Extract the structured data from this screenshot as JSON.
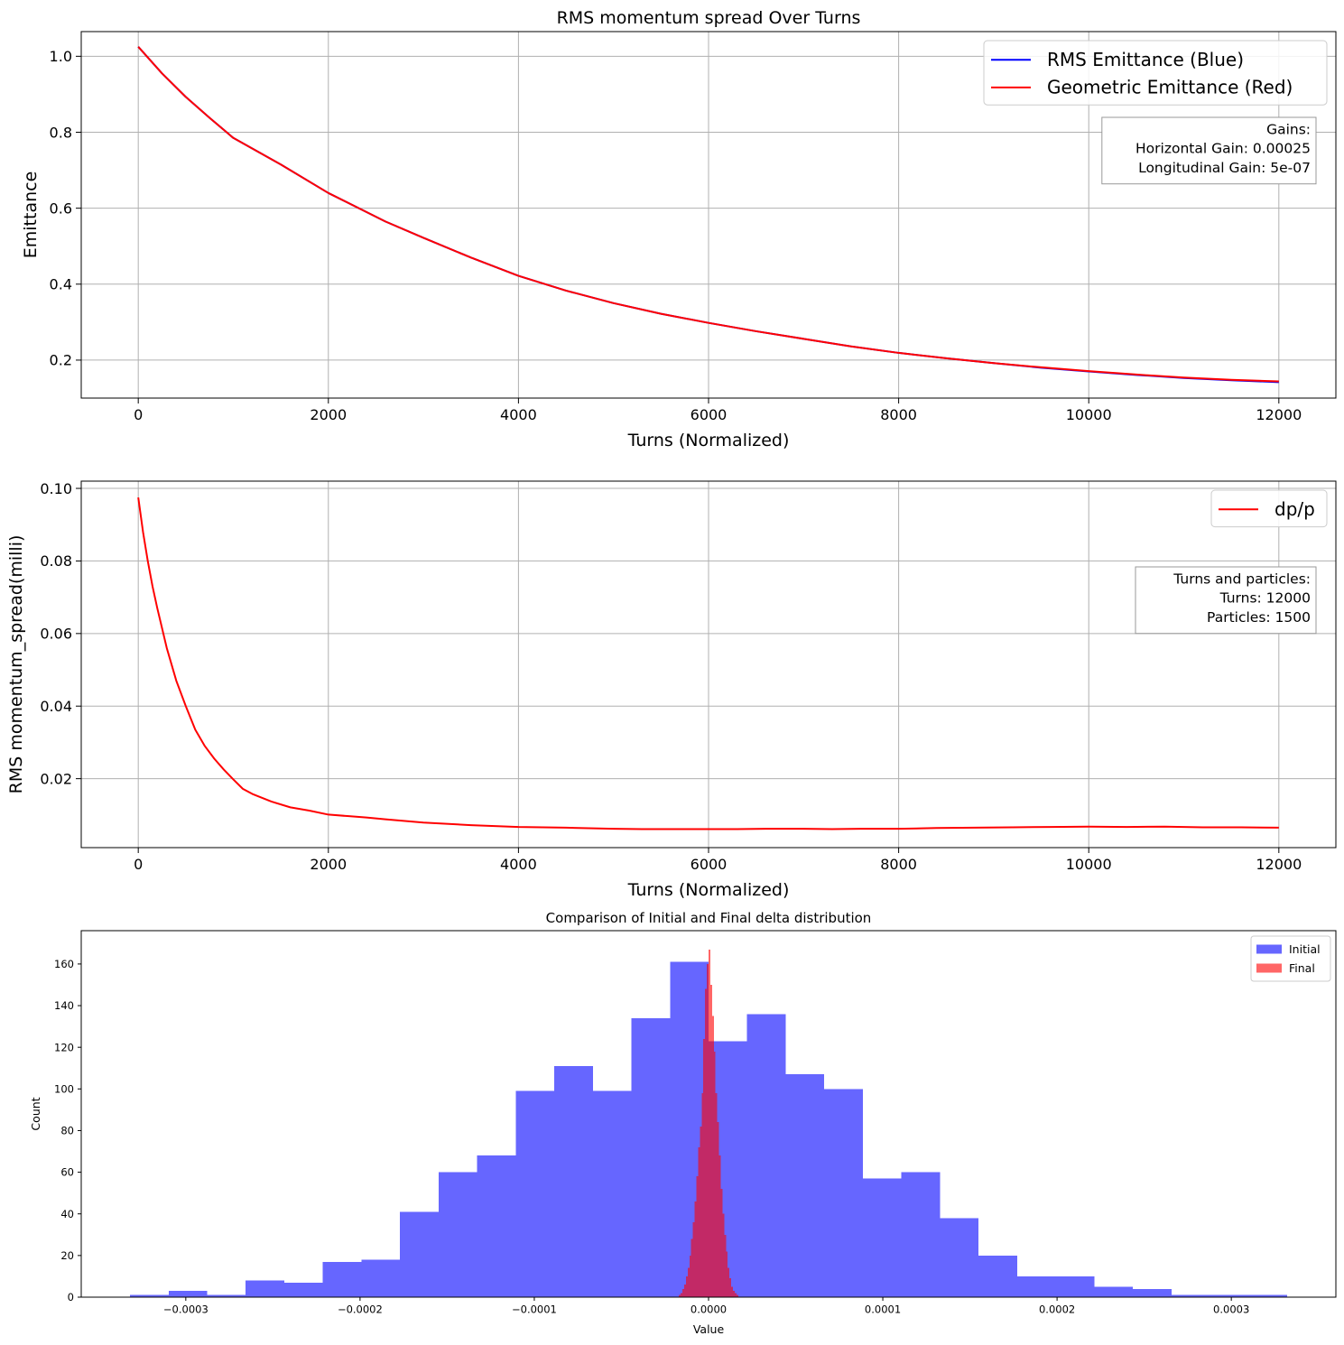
{
  "chart_data": [
    {
      "type": "line",
      "title": "RMS momentum spread Over Turns",
      "xlabel": "Turns (Normalized)",
      "ylabel": "Emittance",
      "xlim": [
        -600,
        12600
      ],
      "ylim": [
        0.1,
        1.065
      ],
      "xticks": [
        0,
        2000,
        4000,
        6000,
        8000,
        10000,
        12000
      ],
      "xtick_labels": [
        "0",
        "2000",
        "4000",
        "6000",
        "8000",
        "10000",
        "12000"
      ],
      "yticks": [
        0.2,
        0.4,
        0.6,
        0.8,
        1.0
      ],
      "ytick_labels": [
        "0.2",
        "0.4",
        "0.6",
        "0.8",
        "1.0"
      ],
      "grid": true,
      "legend": "upper right",
      "series": [
        {
          "name": "RMS Emittance (Blue)",
          "color": "#0000ff",
          "x": [
            0,
            250,
            500,
            750,
            1000,
            1500,
            2000,
            2600,
            3000,
            3500,
            4000,
            4500,
            5000,
            5500,
            6000,
            6500,
            7000,
            7500,
            8000,
            8500,
            9000,
            9500,
            10000,
            10500,
            11000,
            11500,
            12000
          ],
          "y": [
            1.025,
            0.955,
            0.893,
            0.838,
            0.785,
            0.715,
            0.64,
            0.565,
            0.522,
            0.47,
            0.422,
            0.383,
            0.35,
            0.322,
            0.298,
            0.276,
            0.256,
            0.236,
            0.219,
            0.205,
            0.192,
            0.18,
            0.17,
            0.161,
            0.153,
            0.147,
            0.142
          ]
        },
        {
          "name": "Geometric Emittance (Red)",
          "color": "#ff0000",
          "x": [
            0,
            250,
            500,
            750,
            1000,
            1500,
            2000,
            2600,
            3000,
            3500,
            4000,
            4500,
            5000,
            5500,
            6000,
            6500,
            7000,
            7500,
            8000,
            8500,
            9000,
            9500,
            10000,
            10500,
            11000,
            11500,
            12000
          ],
          "y": [
            1.025,
            0.955,
            0.893,
            0.838,
            0.785,
            0.715,
            0.64,
            0.565,
            0.522,
            0.47,
            0.422,
            0.383,
            0.35,
            0.322,
            0.298,
            0.276,
            0.256,
            0.236,
            0.219,
            0.205,
            0.192,
            0.181,
            0.171,
            0.162,
            0.154,
            0.148,
            0.144
          ]
        }
      ],
      "annotation": [
        "Gains:",
        "Horizontal Gain: 0.00025",
        "Longitudinal Gain: 5e-07"
      ]
    },
    {
      "type": "line",
      "title": "",
      "xlabel": "Turns (Normalized)",
      "ylabel": "RMS momentum_spread(milli)",
      "xlim": [
        -600,
        12600
      ],
      "ylim": [
        0.001,
        0.102
      ],
      "xticks": [
        0,
        2000,
        4000,
        6000,
        8000,
        10000,
        12000
      ],
      "xtick_labels": [
        "0",
        "2000",
        "4000",
        "6000",
        "8000",
        "10000",
        "12000"
      ],
      "yticks": [
        0.02,
        0.04,
        0.06,
        0.08,
        0.1
      ],
      "ytick_labels": [
        "0.02",
        "0.04",
        "0.06",
        "0.08",
        "0.10"
      ],
      "grid": true,
      "legend": "upper right",
      "series": [
        {
          "name": "dp/p",
          "color": "#ff0000",
          "x": [
            0,
            50,
            100,
            150,
            200,
            300,
            400,
            500,
            600,
            700,
            800,
            900,
            1000,
            1100,
            1200,
            1400,
            1600,
            1800,
            2000,
            2200,
            2400,
            2600,
            3000,
            3500,
            4000,
            4500,
            5000,
            5300,
            5600,
            6000,
            6300,
            6600,
            7000,
            7300,
            7600,
            8000,
            8400,
            8800,
            9200,
            9600,
            10000,
            10400,
            10800,
            11200,
            11600,
            12000
          ],
          "y": [
            0.0975,
            0.088,
            0.08,
            0.073,
            0.067,
            0.056,
            0.047,
            0.04,
            0.0335,
            0.029,
            0.0255,
            0.0225,
            0.0198,
            0.0172,
            0.0158,
            0.0137,
            0.0121,
            0.0112,
            0.0101,
            0.0097,
            0.0093,
            0.0088,
            0.0079,
            0.0072,
            0.0067,
            0.0065,
            0.0062,
            0.0061,
            0.0061,
            0.0061,
            0.0061,
            0.0062,
            0.0062,
            0.0061,
            0.0062,
            0.0062,
            0.0064,
            0.0065,
            0.0066,
            0.0067,
            0.0068,
            0.0067,
            0.0068,
            0.0066,
            0.0066,
            0.0065
          ]
        }
      ],
      "annotation": [
        "Turns and particles:",
        "Turns: 12000",
        "Particles: 1500"
      ]
    },
    {
      "type": "histogram",
      "title": "Comparison of Initial and Final delta distribution",
      "xlabel": "Value",
      "ylabel": "Count",
      "xlim": [
        -0.00036,
        0.00036
      ],
      "ylim": [
        0,
        176
      ],
      "xticks": [
        -0.0003,
        -0.0002,
        -0.0001,
        0.0,
        0.0001,
        0.0002,
        0.0003
      ],
      "xtick_labels": [
        "−0.0003",
        "−0.0002",
        "−0.0001",
        "0.0000",
        "0.0001",
        "0.0002",
        "0.0003"
      ],
      "yticks": [
        0,
        20,
        40,
        60,
        80,
        100,
        120,
        140,
        160
      ],
      "ytick_labels": [
        "0",
        "20",
        "40",
        "60",
        "80",
        "100",
        "120",
        "140",
        "160"
      ],
      "grid": false,
      "legend": "upper right",
      "series": [
        {
          "name": "Initial",
          "color": "#0000ff",
          "opacity": 0.6,
          "bin_start": -0.000332,
          "bin_end": 0.000332,
          "counts": [
            1,
            3,
            1,
            8,
            7,
            17,
            18,
            41,
            60,
            68,
            99,
            111,
            99,
            134,
            161,
            123,
            136,
            107,
            100,
            57,
            60,
            38,
            20,
            10,
            10,
            5,
            4,
            1,
            1,
            1
          ]
        },
        {
          "name": "Final",
          "color": "#ff0000",
          "opacity": 0.6,
          "bin_start": -1.7e-05,
          "bin_end": 1.7e-05,
          "counts": [
            1,
            2,
            4,
            6,
            10,
            14,
            20,
            28,
            36,
            46,
            58,
            72,
            82,
            98,
            124,
            148,
            160,
            167,
            150,
            135,
            118,
            98,
            84,
            68,
            52,
            40,
            30,
            22,
            14,
            9,
            5,
            3,
            2,
            1
          ]
        }
      ]
    }
  ]
}
